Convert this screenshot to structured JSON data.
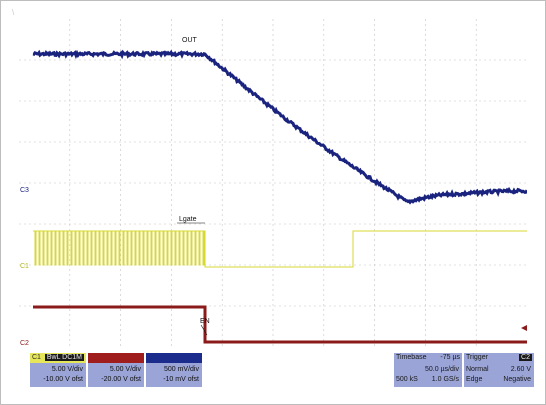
{
  "corner_mark": "\\",
  "traces": {
    "out": {
      "label": "OUT",
      "color": "#1a237e"
    },
    "lgate": {
      "label": "Lgate",
      "color": "#d8d830"
    },
    "en": {
      "label": "EN",
      "color": "#8b1a1a"
    }
  },
  "markers": {
    "c3": "C3",
    "c1": "C1",
    "c2": "C2"
  },
  "channels": {
    "c1": {
      "name": "C1",
      "tags": "BwL DC1M",
      "scale": "5.00 V/div",
      "offset": "-10.00 V ofst"
    },
    "c2": {
      "name": "",
      "tags": "",
      "scale": "5.00 V/div",
      "offset": "-20.00 V ofst"
    },
    "c3": {
      "name": "",
      "tags": "",
      "scale": "500 mV/div",
      "offset": "-10 mV ofst"
    }
  },
  "timebase": {
    "label": "Timebase",
    "delay": "-75 µs",
    "per_div": "50.0 µs/div",
    "samples": "500 kS",
    "rate": "1.0 GS/s"
  },
  "trigger": {
    "label": "Trigger",
    "source": "C2",
    "mode": "Normal",
    "level": "2.60 V",
    "type": "Edge",
    "slope": "Negative"
  }
}
